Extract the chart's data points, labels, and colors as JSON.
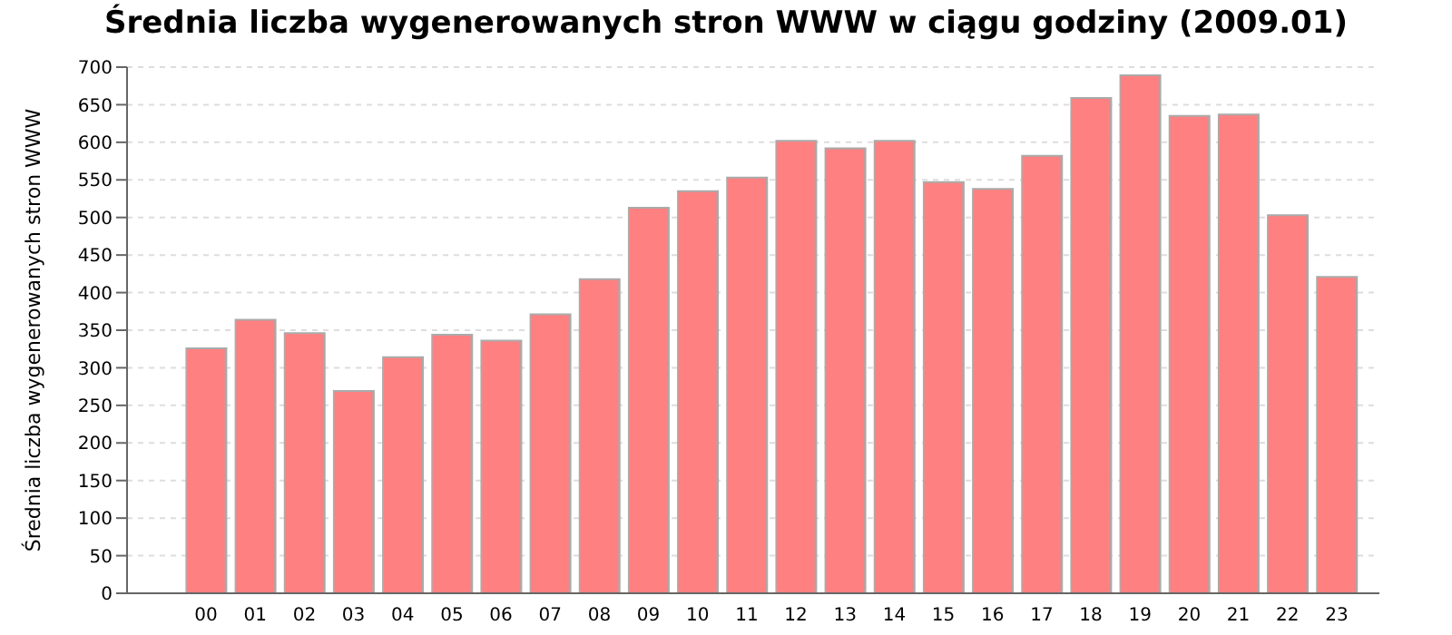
{
  "chart_data": {
    "type": "bar",
    "title": "Średnia liczba wygenerowanych stron WWW w ciągu godziny (2009.01)",
    "ylabel": "Średnia liczba wygenerowanych stron WWW",
    "categories": [
      "00",
      "01",
      "02",
      "03",
      "04",
      "05",
      "06",
      "07",
      "08",
      "09",
      "10",
      "11",
      "12",
      "13",
      "14",
      "15",
      "16",
      "17",
      "18",
      "19",
      "20",
      "21",
      "22",
      "23"
    ],
    "values": [
      326,
      364,
      346,
      269,
      314,
      344,
      336,
      371,
      418,
      513,
      535,
      553,
      602,
      592,
      602,
      547,
      538,
      582,
      659,
      689,
      635,
      637,
      503,
      421
    ],
    "color": "#ff8080",
    "ylim": [
      0,
      700
    ],
    "yticks": [
      0,
      50,
      100,
      150,
      200,
      250,
      300,
      350,
      400,
      450,
      500,
      550,
      600,
      650,
      700
    ],
    "grid": "y"
  }
}
